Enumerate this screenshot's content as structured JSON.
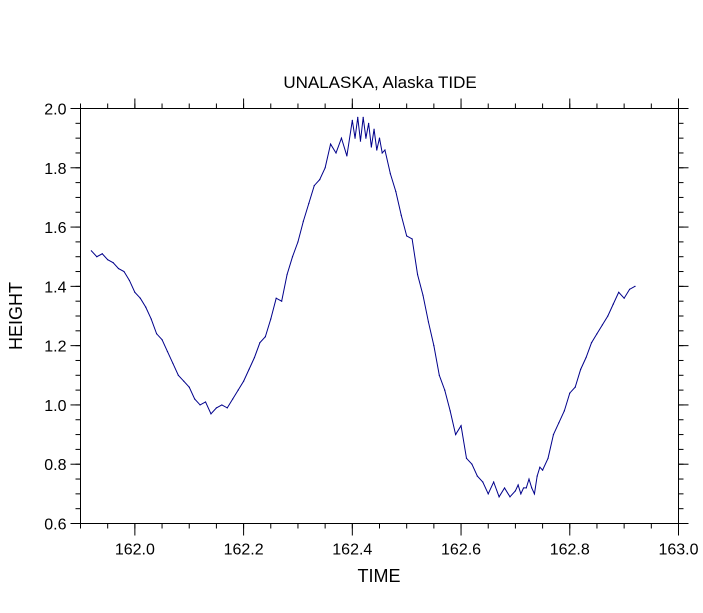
{
  "chart_data": {
    "type": "line",
    "title": "UNALASKA, Alaska TIDE",
    "xlabel": "TIME",
    "ylabel": "HEIGHT",
    "xlim": [
      161.9,
      163.0
    ],
    "ylim": [
      0.6,
      2.0
    ],
    "x_ticks": [
      162.0,
      162.2,
      162.4,
      162.6,
      162.8,
      163.0
    ],
    "x_tick_labels": [
      "162.0",
      "162.2",
      "162.4",
      "162.6",
      "162.8",
      "163.0"
    ],
    "y_ticks": [
      0.6,
      0.8,
      1.0,
      1.2,
      1.4,
      1.6,
      1.8,
      2.0
    ],
    "y_tick_labels": [
      "0.6",
      "0.8",
      "1.0",
      "1.2",
      "1.4",
      "1.6",
      "1.8",
      "2.0"
    ],
    "grid": false,
    "line_color": "#00008b",
    "series": [
      {
        "x": [
          161.92,
          161.93,
          161.94,
          161.95,
          161.96,
          161.97,
          161.98,
          161.99,
          162.0,
          162.01,
          162.02,
          162.03,
          162.04,
          162.05,
          162.06,
          162.07,
          162.08,
          162.09,
          162.1,
          162.11,
          162.12,
          162.13,
          162.14,
          162.15,
          162.16,
          162.17,
          162.18,
          162.19,
          162.2,
          162.21,
          162.22,
          162.23,
          162.24,
          162.25,
          162.26,
          162.27,
          162.28,
          162.29,
          162.3,
          162.31,
          162.32,
          162.33,
          162.34,
          162.35,
          162.36,
          162.37,
          162.38,
          162.39,
          162.4,
          162.405,
          162.41,
          162.415,
          162.42,
          162.425,
          162.43,
          162.435,
          162.44,
          162.445,
          162.45,
          162.455,
          162.46,
          162.47,
          162.48,
          162.49,
          162.5,
          162.51,
          162.52,
          162.53,
          162.54,
          162.55,
          162.56,
          162.57,
          162.58,
          162.59,
          162.6,
          162.61,
          162.62,
          162.63,
          162.64,
          162.65,
          162.66,
          162.67,
          162.68,
          162.69,
          162.7,
          162.705,
          162.71,
          162.715,
          162.72,
          162.725,
          162.73,
          162.735,
          162.74,
          162.745,
          162.75,
          162.76,
          162.77,
          162.78,
          162.79,
          162.8,
          162.81,
          162.82,
          162.83,
          162.84,
          162.85,
          162.86,
          162.87,
          162.88,
          162.89,
          162.9,
          162.91,
          162.92
        ],
        "y": [
          1.52,
          1.5,
          1.51,
          1.49,
          1.48,
          1.46,
          1.45,
          1.42,
          1.38,
          1.36,
          1.33,
          1.29,
          1.24,
          1.22,
          1.18,
          1.14,
          1.1,
          1.08,
          1.06,
          1.02,
          1.0,
          1.01,
          0.97,
          0.99,
          1.0,
          0.99,
          1.02,
          1.05,
          1.08,
          1.12,
          1.16,
          1.21,
          1.23,
          1.29,
          1.36,
          1.35,
          1.44,
          1.5,
          1.55,
          1.62,
          1.68,
          1.74,
          1.76,
          1.8,
          1.88,
          1.85,
          1.9,
          1.84,
          1.96,
          1.9,
          1.97,
          1.89,
          1.97,
          1.9,
          1.95,
          1.87,
          1.93,
          1.86,
          1.9,
          1.85,
          1.86,
          1.78,
          1.72,
          1.64,
          1.57,
          1.56,
          1.44,
          1.37,
          1.28,
          1.2,
          1.1,
          1.05,
          0.98,
          0.9,
          0.93,
          0.82,
          0.8,
          0.76,
          0.74,
          0.7,
          0.74,
          0.69,
          0.72,
          0.69,
          0.71,
          0.73,
          0.7,
          0.72,
          0.72,
          0.75,
          0.72,
          0.7,
          0.76,
          0.79,
          0.78,
          0.82,
          0.9,
          0.94,
          0.98,
          1.04,
          1.06,
          1.12,
          1.16,
          1.21,
          1.24,
          1.27,
          1.3,
          1.34,
          1.38,
          1.36,
          1.39,
          1.4
        ]
      }
    ]
  }
}
